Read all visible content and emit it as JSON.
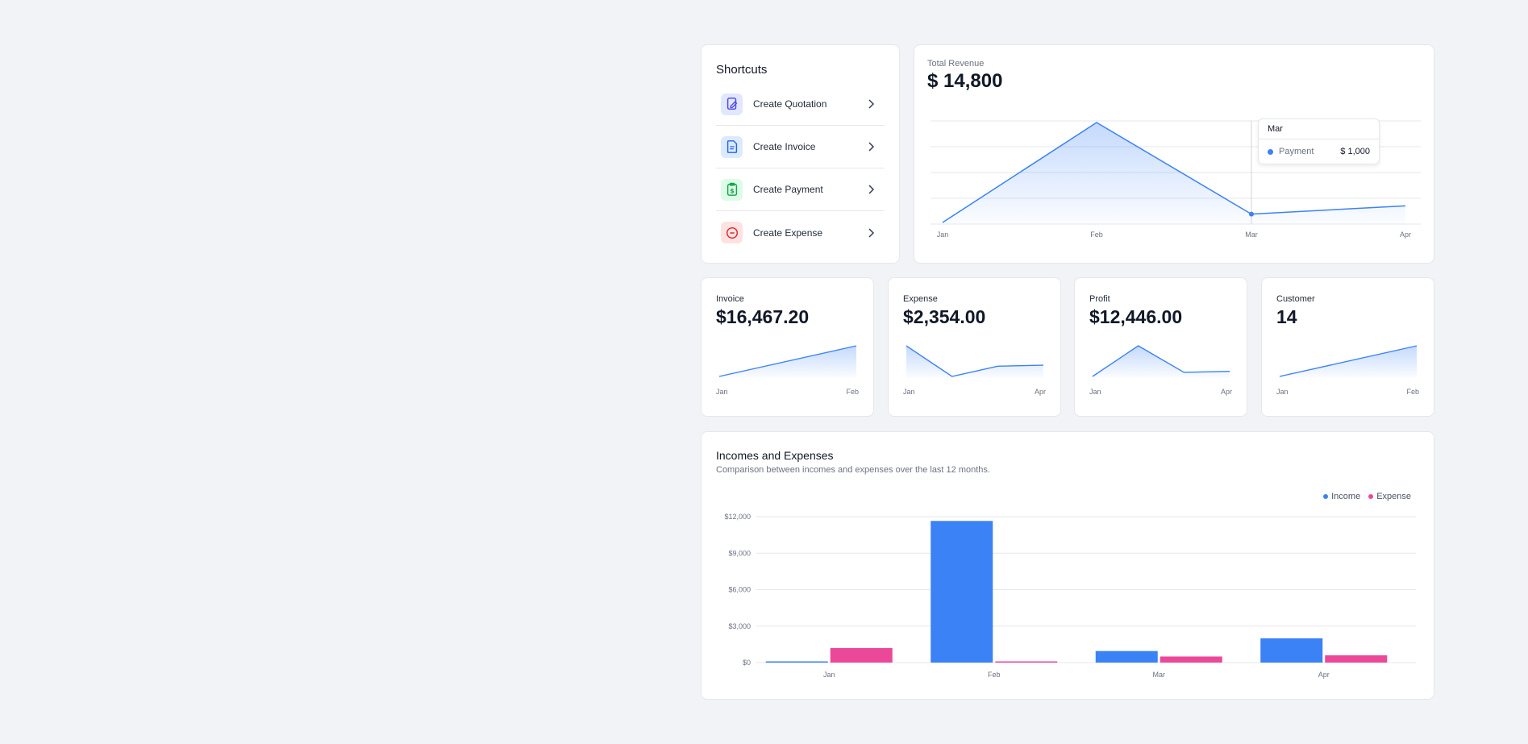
{
  "shortcuts": {
    "title": "Shortcuts",
    "items": [
      {
        "label": "Create Quotation",
        "icon": "edit-document-icon",
        "bg": "#e0e7ff",
        "fg": "#4f46e5"
      },
      {
        "label": "Create Invoice",
        "icon": "document-icon",
        "bg": "#dbeafe",
        "fg": "#2563eb"
      },
      {
        "label": "Create Payment",
        "icon": "clipboard-dollar-icon",
        "bg": "#dcfce7",
        "fg": "#16a34a"
      },
      {
        "label": "Create Expense",
        "icon": "minus-circle-icon",
        "bg": "#fee2e2",
        "fg": "#dc2626"
      }
    ]
  },
  "revenue": {
    "label": "Total Revenue",
    "value": "$ 14,800",
    "tooltip": {
      "month": "Mar",
      "series": "Payment",
      "value": "$ 1,000"
    }
  },
  "stats": [
    {
      "label": "Invoice",
      "value": "$16,467.20",
      "x_start": "Jan",
      "x_end": "Feb"
    },
    {
      "label": "Expense",
      "value": "$2,354.00",
      "x_start": "Jan",
      "x_end": "Apr"
    },
    {
      "label": "Profit",
      "value": "$12,446.00",
      "x_start": "Jan",
      "x_end": "Apr"
    },
    {
      "label": "Customer",
      "value": "14",
      "x_start": "Jan",
      "x_end": "Feb"
    }
  ],
  "income_expense": {
    "title": "Incomes and Expenses",
    "subtitle": "Comparison between incomes and expenses over the last 12 months.",
    "legend": {
      "income": "Income",
      "expense": "Expense"
    }
  },
  "colors": {
    "income": "#3b82f6",
    "expense": "#ec4899",
    "line": "#3b82f6"
  },
  "chart_data": [
    {
      "type": "area",
      "categories": [
        "Jan",
        "Feb",
        "Mar",
        "Apr"
      ],
      "series": [
        {
          "name": "Payment",
          "values": [
            0,
            12000,
            1000,
            2000
          ]
        }
      ]
    },
    {
      "type": "area",
      "categories": [
        "Jan",
        "Feb"
      ],
      "series": [
        {
          "values": [
            1,
            3
          ]
        }
      ]
    },
    {
      "type": "area",
      "categories": [
        "Jan",
        "",
        "",
        "Apr"
      ],
      "series": [
        {
          "values": [
            3,
            0,
            1,
            1.1
          ]
        }
      ]
    },
    {
      "type": "area",
      "categories": [
        "Jan",
        "",
        "",
        "Apr"
      ],
      "series": [
        {
          "values": [
            0,
            3,
            0.4,
            0.5
          ]
        }
      ]
    },
    {
      "type": "area",
      "categories": [
        "Jan",
        "Feb"
      ],
      "series": [
        {
          "values": [
            1,
            3
          ]
        }
      ]
    },
    {
      "type": "bar",
      "categories": [
        "Jan",
        "Feb",
        "Mar",
        "Apr"
      ],
      "series": [
        {
          "name": "Income",
          "values": [
            100,
            11650,
            950,
            2000
          ]
        },
        {
          "name": "Expense",
          "values": [
            1200,
            30,
            500,
            600
          ]
        }
      ],
      "y_ticks": [
        "$0",
        "$3,000",
        "$6,000",
        "$9,000",
        "$12,000"
      ],
      "ylim": [
        0,
        12000
      ]
    }
  ]
}
